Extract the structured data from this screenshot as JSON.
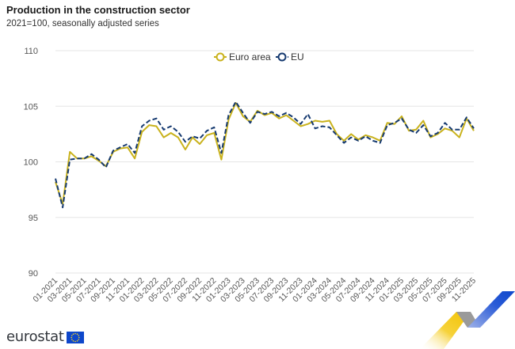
{
  "header": {
    "title": "Production in the construction sector",
    "subtitle": "2021=100, seasonally adjusted series"
  },
  "footer": {
    "logo_text": "eurostat"
  },
  "colors": {
    "euro_area": "#c9b21c",
    "eu": "#163a70",
    "grid": "#e6e6e6",
    "axis_text": "#555555"
  },
  "chart_data": {
    "type": "line",
    "title": "Production in the construction sector",
    "subtitle": "2021=100, seasonally adjusted series",
    "xlabel": "",
    "ylabel": "",
    "ylim": [
      90,
      110
    ],
    "yticks": [
      "90",
      "95",
      "100",
      "105",
      "110"
    ],
    "grid": true,
    "legend": "top-center",
    "x": [
      "01-2021",
      "02-2021",
      "03-2021",
      "04-2021",
      "05-2021",
      "06-2021",
      "07-2021",
      "08-2021",
      "09-2021",
      "10-2021",
      "11-2021",
      "12-2021",
      "01-2022",
      "02-2022",
      "03-2022",
      "04-2022",
      "05-2022",
      "06-2022",
      "07-2022",
      "08-2022",
      "09-2022",
      "10-2022",
      "11-2022",
      "12-2022",
      "01-2023",
      "02-2023",
      "03-2023",
      "04-2023",
      "05-2023",
      "06-2023",
      "07-2023",
      "08-2023",
      "09-2023",
      "10-2023",
      "11-2023",
      "12-2023",
      "01-2024",
      "02-2024",
      "03-2024",
      "04-2024",
      "05-2024",
      "06-2024",
      "07-2024",
      "08-2024",
      "09-2024",
      "10-2024",
      "11-2024",
      "12-2024",
      "01-2025",
      "02-2025",
      "03-2025",
      "04-2025",
      "05-2025",
      "06-2025",
      "07-2025",
      "08-2025",
      "09-2025",
      "10-2025",
      "11-2025"
    ],
    "xtick_labels": [
      "01-2021",
      "03-2021",
      "05-2021",
      "07-2021",
      "09-2021",
      "11-2021",
      "01-2022",
      "03-2022",
      "05-2022",
      "07-2022",
      "09-2022",
      "11-2022",
      "01-2023",
      "03-2023",
      "05-2023",
      "07-2023",
      "09-2023",
      "11-2023",
      "01-2024",
      "03-2024",
      "05-2024",
      "07-2024",
      "09-2024",
      "11-2024",
      "01-2025",
      "03-2025",
      "05-2025",
      "07-2025",
      "09-2025",
      "11-2025"
    ],
    "series": [
      {
        "name": "Euro area",
        "style": "solid",
        "values": [
          98.2,
          96.2,
          100.9,
          100.3,
          100.3,
          100.5,
          100.1,
          99.6,
          100.9,
          101.2,
          101.3,
          100.3,
          102.7,
          103.3,
          103.2,
          102.2,
          102.6,
          102.2,
          101.1,
          102.2,
          101.6,
          102.4,
          102.6,
          100.2,
          103.8,
          105.3,
          104.1,
          103.6,
          104.6,
          104.2,
          104.4,
          103.9,
          104.2,
          103.7,
          103.2,
          103.4,
          103.7,
          103.6,
          103.7,
          102.5,
          101.9,
          102.5,
          102.0,
          102.4,
          102.2,
          101.9,
          103.5,
          103.4,
          104.1,
          102.8,
          102.9,
          103.7,
          102.2,
          102.5,
          103.0,
          102.8,
          102.2,
          103.9,
          102.8
        ]
      },
      {
        "name": "EU",
        "style": "dashed",
        "values": [
          98.5,
          95.9,
          100.2,
          100.3,
          100.3,
          100.7,
          100.2,
          99.5,
          101.0,
          101.3,
          101.6,
          100.8,
          103.2,
          103.7,
          103.9,
          102.9,
          103.2,
          102.7,
          101.8,
          102.3,
          102.1,
          102.8,
          103.1,
          100.8,
          104.2,
          105.4,
          104.4,
          103.5,
          104.5,
          104.3,
          104.5,
          104.1,
          104.4,
          104.0,
          103.4,
          104.3,
          103.0,
          103.2,
          103.1,
          102.4,
          101.7,
          102.2,
          101.9,
          102.3,
          101.9,
          101.7,
          103.3,
          103.5,
          103.9,
          102.9,
          102.6,
          103.3,
          102.3,
          102.6,
          103.5,
          102.9,
          102.9,
          104.0,
          103.0
        ]
      }
    ]
  }
}
